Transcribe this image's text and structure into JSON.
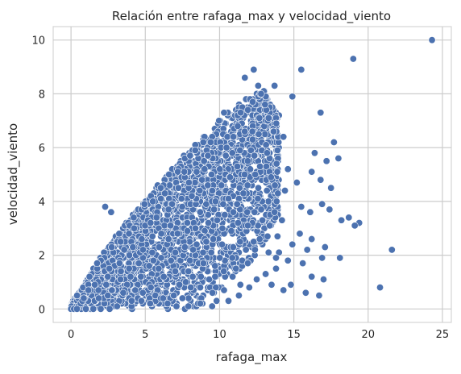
{
  "chart_data": {
    "type": "scatter",
    "title": "Relación entre rafaga_max y velocidad_viento",
    "xlabel": "rafaga_max",
    "ylabel": "velocidad_viento",
    "xlim": [
      -1.2,
      25.6
    ],
    "ylim": [
      -0.5,
      10.5
    ],
    "xticks": [
      0,
      5,
      10,
      15,
      20,
      25
    ],
    "yticks": [
      0,
      2,
      4,
      6,
      8,
      10
    ],
    "grid": true,
    "marker_color": "#4c72b0",
    "marker_edge_color": "#ffffff",
    "background_color": "#ffffff",
    "grid_color": "#cccccc",
    "points": [
      [
        0,
        0
      ],
      [
        0.2,
        0
      ],
      [
        0.4,
        0
      ],
      [
        24.3,
        10
      ],
      [
        19,
        9.3
      ],
      [
        15.5,
        8.9
      ],
      [
        13.7,
        8.3
      ],
      [
        14.9,
        7.9
      ],
      [
        16.8,
        7.3
      ],
      [
        17.7,
        6.2
      ],
      [
        16.4,
        5.8
      ],
      [
        17.2,
        5.5
      ],
      [
        18,
        5.6
      ],
      [
        16.2,
        5.1
      ],
      [
        16.8,
        4.8
      ],
      [
        17.5,
        4.5
      ],
      [
        15.2,
        4.7
      ],
      [
        15.5,
        3.8
      ],
      [
        16.1,
        3.6
      ],
      [
        16.9,
        3.9
      ],
      [
        17.4,
        3.7
      ],
      [
        18.2,
        3.3
      ],
      [
        18.7,
        3.4
      ],
      [
        19.4,
        3.2
      ],
      [
        19.1,
        3.1
      ],
      [
        15.4,
        2.8
      ],
      [
        16.2,
        2.6
      ],
      [
        17.1,
        2.3
      ],
      [
        15.9,
        2.2
      ],
      [
        16.9,
        1.9
      ],
      [
        18.1,
        1.9
      ],
      [
        21.6,
        2.2
      ],
      [
        15.6,
        1.7
      ],
      [
        16.2,
        1.2
      ],
      [
        17,
        1.1
      ],
      [
        14.8,
        0.9
      ],
      [
        15.8,
        0.6
      ],
      [
        16.7,
        0.5
      ],
      [
        20.8,
        0.8
      ],
      [
        14.3,
        0.7
      ],
      [
        2.3,
        3.8
      ],
      [
        2.7,
        3.6
      ],
      [
        12.3,
        8.9
      ],
      [
        11.7,
        8.6
      ],
      [
        12.6,
        8.3
      ],
      [
        10.3,
        7.3
      ],
      [
        13.3,
        7.1
      ],
      [
        14.3,
        6.4
      ],
      [
        13.9,
        5.9
      ],
      [
        14.6,
        5.2
      ],
      [
        14.4,
        4.4
      ],
      [
        13.7,
        3.6
      ],
      [
        14.2,
        3.3
      ],
      [
        13.9,
        2.7
      ],
      [
        14.9,
        2.4
      ],
      [
        14,
        2.1
      ],
      [
        14.6,
        1.8
      ],
      [
        13.8,
        1.9
      ],
      [
        13.1,
        1.3
      ],
      [
        12.5,
        1.1
      ],
      [
        12,
        0.8
      ],
      [
        11.3,
        0.5
      ],
      [
        10.6,
        0.3
      ],
      [
        9.5,
        0.1
      ],
      [
        9.8,
        0.3
      ],
      [
        8.7,
        0.2
      ],
      [
        7.9,
        0.1
      ],
      [
        7.1,
        0.1
      ],
      [
        6.5,
        0.2
      ],
      [
        6.2,
        0.4
      ],
      [
        7.5,
        0.4
      ],
      [
        3.1,
        0.1
      ],
      [
        2.6,
        0
      ],
      [
        2,
        0
      ],
      [
        1.5,
        0
      ],
      [
        1,
        0
      ],
      [
        12.4,
        5
      ],
      [
        11.6,
        4.3
      ],
      [
        12.8,
        3.7
      ],
      [
        11.9,
        3.1
      ],
      [
        12.7,
        2.6
      ],
      [
        13.3,
        2.1
      ],
      [
        11.9,
        1.7
      ],
      [
        13.8,
        1.5
      ],
      [
        13.5,
        0.9
      ],
      [
        11.1,
        1.5
      ],
      [
        11.4,
        0.9
      ],
      [
        10.3,
        0.7
      ],
      [
        9.7,
        1.2
      ],
      [
        8.7,
        0.8
      ]
    ],
    "density": {
      "envelope_x_step": 0.5,
      "upper_y": [
        0.15,
        0.55,
        1.0,
        1.5,
        1.9,
        2.3,
        2.7,
        3.05,
        3.4,
        3.7,
        4.05,
        4.35,
        4.7,
        5.0,
        5.35,
        5.6,
        5.9,
        6.2,
        6.5,
        6.8,
        7.1,
        7.3,
        7.5,
        7.7,
        7.9,
        8.0,
        8.1,
        7.6,
        7.2
      ],
      "lower_y": [
        0.0,
        0.0,
        0.0,
        0.0,
        0.0,
        0.0,
        0.0,
        0.0,
        0.0,
        0.0,
        0.0,
        0.0,
        0.0,
        0.0,
        0.0,
        0.0,
        0.0,
        0.1,
        0.25,
        0.45,
        0.65,
        0.9,
        1.2,
        1.45,
        1.7,
        2.1,
        2.5,
        2.9,
        3.2
      ]
    }
  }
}
